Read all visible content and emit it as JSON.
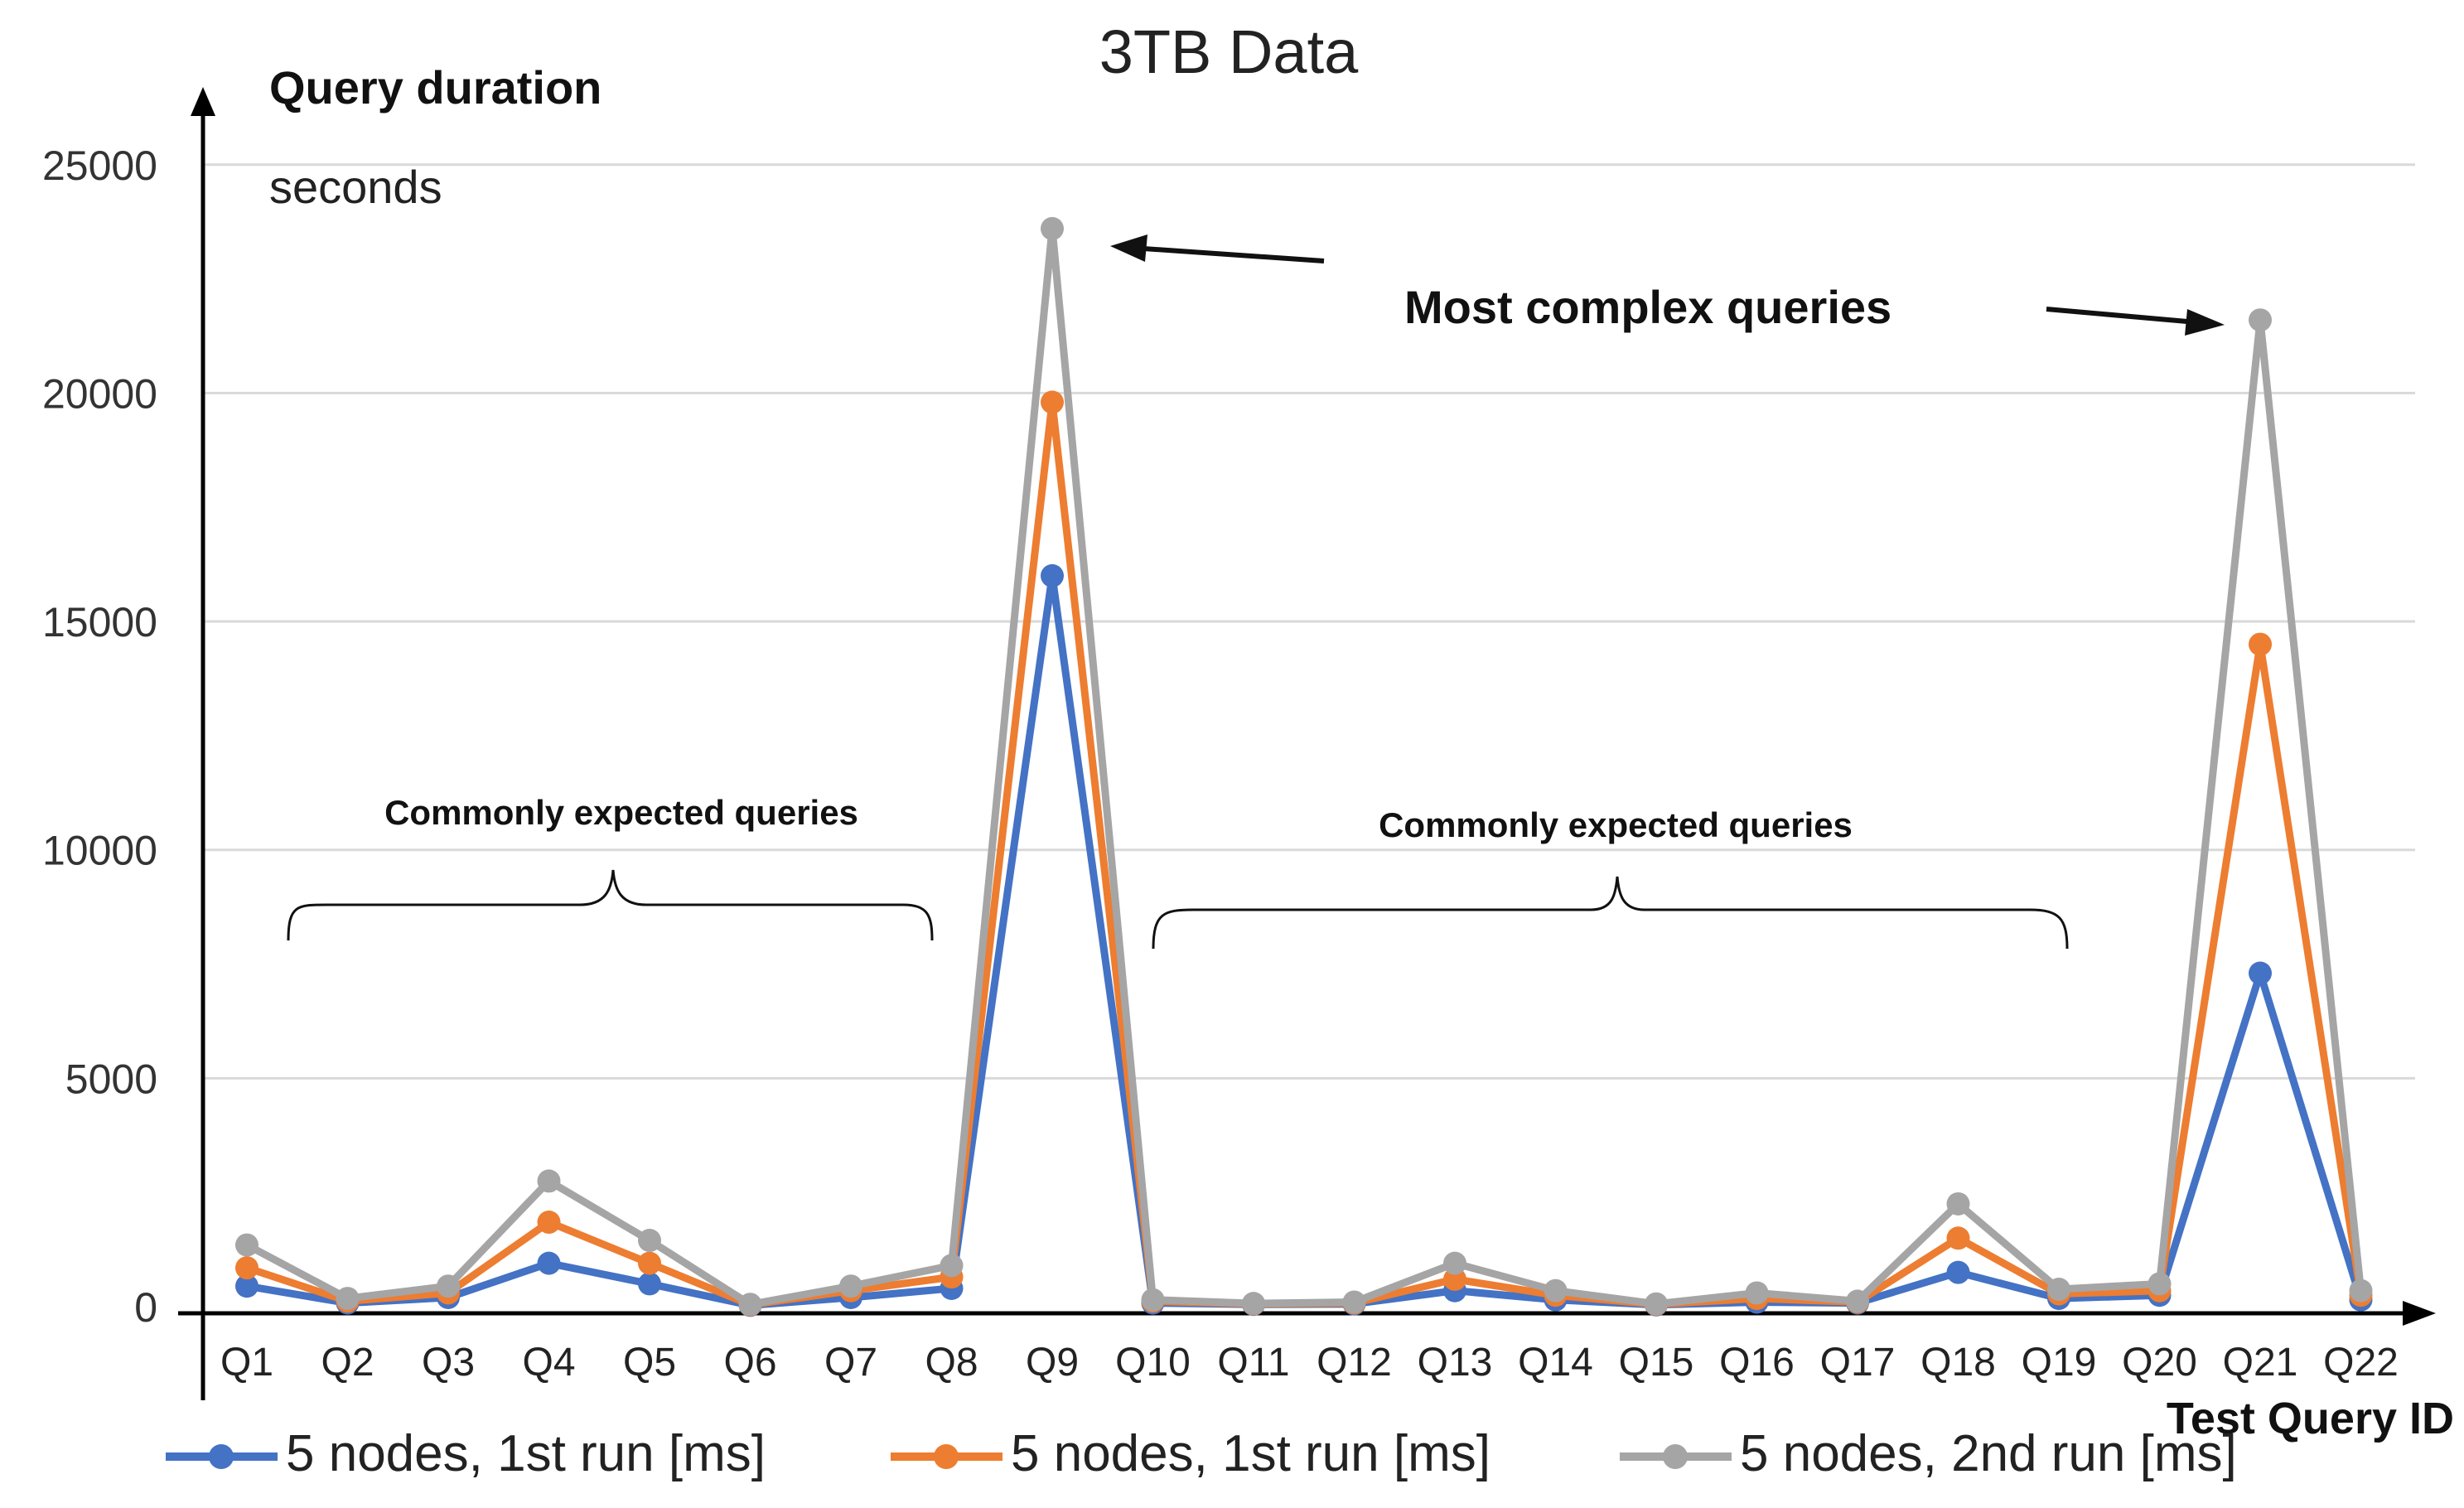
{
  "chart_data": {
    "type": "line",
    "title": "3TB Data",
    "ylabel": "Query duration",
    "yunit": "seconds",
    "xlabel": "Test Query ID",
    "ylim": [
      0,
      25000
    ],
    "yticks": [
      0,
      5000,
      10000,
      15000,
      20000,
      25000
    ],
    "grid": true,
    "legend_position": "bottom",
    "categories": [
      "Q1",
      "Q2",
      "Q3",
      "Q4",
      "Q5",
      "Q6",
      "Q7",
      "Q8",
      "Q9",
      "Q10",
      "Q11",
      "Q12",
      "Q13",
      "Q14",
      "Q15",
      "Q16",
      "Q17",
      "Q18",
      "Q19",
      "Q20",
      "Q21",
      "Q22"
    ],
    "series": [
      {
        "name": "5 nodes, 1st run  [ms]",
        "color": "#4472c4",
        "values": [
          450,
          80,
          200,
          950,
          500,
          30,
          200,
          400,
          16000,
          80,
          50,
          60,
          350,
          150,
          40,
          100,
          80,
          750,
          180,
          250,
          7300,
          150
        ]
      },
      {
        "name": "5 nodes, 1st run  [ms]",
        "color": "#ed7d31",
        "values": [
          850,
          120,
          300,
          1850,
          950,
          40,
          350,
          650,
          19800,
          120,
          60,
          80,
          600,
          250,
          50,
          180,
          100,
          1500,
          280,
          350,
          14500,
          250
        ]
      },
      {
        "name": "5 nodes, 2nd run  [ms]",
        "color": "#a5a5a5",
        "values": [
          1350,
          180,
          450,
          2750,
          1450,
          50,
          450,
          900,
          23600,
          150,
          70,
          100,
          950,
          350,
          60,
          300,
          120,
          2250,
          380,
          500,
          21600,
          350
        ]
      }
    ],
    "annotations": {
      "complex": "Most complex queries",
      "common_left": "Commonly expected queries",
      "common_right": "Commonly expected queries"
    }
  }
}
